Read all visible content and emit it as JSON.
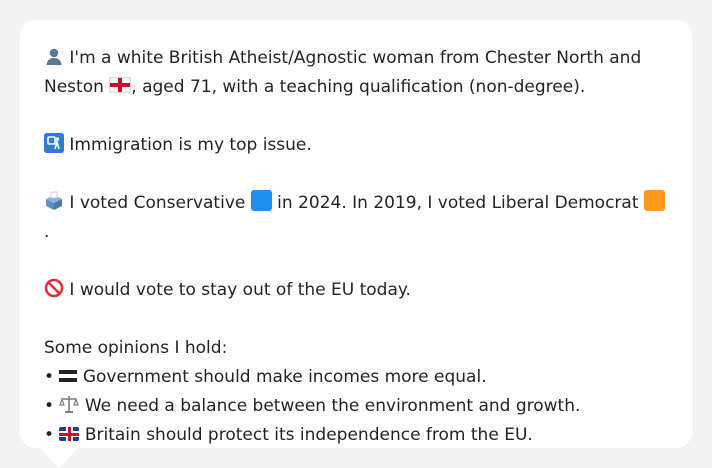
{
  "profile": {
    "intro_before_flag": "I'm a white British Atheist/Agnostic woman from Chester North and Neston",
    "intro_after_flag": ", aged 71, with a teaching qualification (non-degree).",
    "top_issue": "Immigration is my top issue.",
    "vote_text_part1": "I voted Conservative",
    "vote_text_part2": "in 2024. In 2019, I voted Liberal Democrat",
    "vote_text_part3": ".",
    "eu_text": "I would vote to stay out of the EU today.",
    "opinions_heading": "Some opinions I hold:",
    "opinions": [
      {
        "bullet": "•",
        "icon": "equals-icon",
        "text": "Government should make incomes more equal."
      },
      {
        "bullet": "•",
        "icon": "balance-scale-icon",
        "text": "We need a balance between the environment and growth."
      },
      {
        "bullet": "•",
        "icon": "uk-flag-icon",
        "text": "Britain should protect its independence from the EU."
      }
    ]
  },
  "colors": {
    "background": "#f3f3f4",
    "bubble": "#ffffff",
    "text": "#1f2328",
    "conservative": "#1d8ff0",
    "libdem": "#ff9a1f"
  }
}
